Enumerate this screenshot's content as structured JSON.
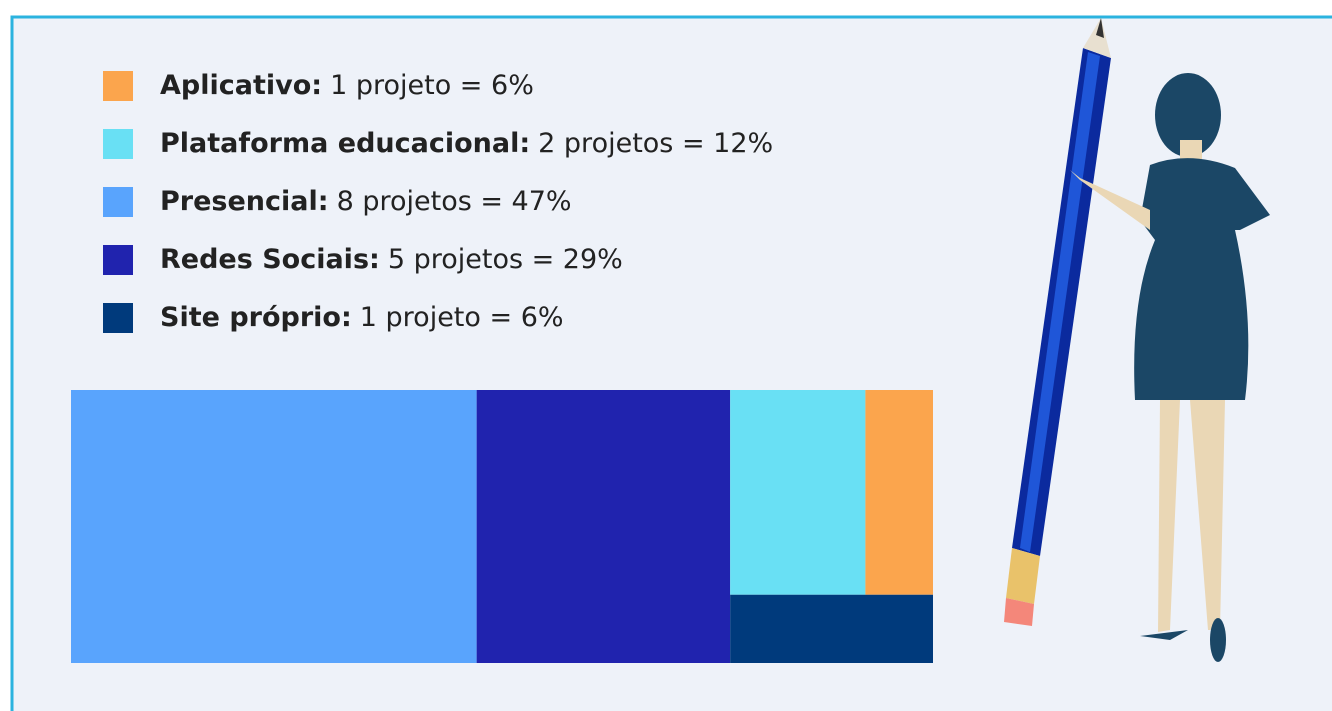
{
  "chart_data": {
    "type": "treemap",
    "categories": [
      "Aplicativo:",
      "Plataforma educacional:",
      "Presencial:",
      "Redes Sociais:",
      "Site próprio:"
    ],
    "values": [
      1,
      2,
      8,
      5,
      1
    ],
    "value_labels": [
      "1 projeto = 6%",
      "2 projetos = 12%",
      "8 projetos = 47%",
      "5 projetos = 29%",
      "1 projeto = 6%"
    ],
    "colors": [
      "#fba54d",
      "#69e0f4",
      "#59a4fd",
      "#2023ae",
      "#003a7c"
    ]
  }
}
